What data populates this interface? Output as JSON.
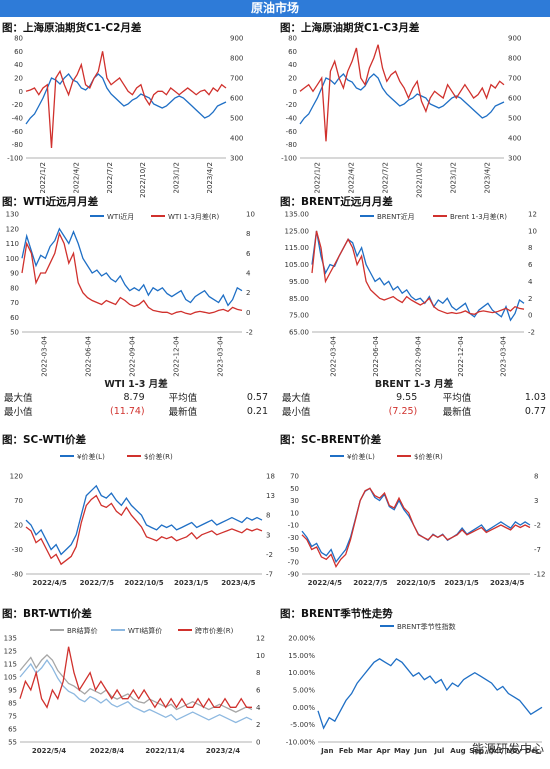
{
  "banner": "原油市场",
  "titles": {
    "p1": "图：上海原油期货C1-C2月差",
    "p2": "图：上海原油期货C1-C3月差",
    "p3": "图：WTI近远月月差",
    "p4": "图：BRENT近远月月差",
    "p5": "图：SC-WTI价差",
    "p6": "图：SC-BRENT价差",
    "p7": "图：BRT-WTI价差",
    "p8": "图：BRENT季节性走势"
  },
  "stats": {
    "wti": {
      "header": "WTI 1-3 月差",
      "max_label": "最大值",
      "max": "8.79",
      "avg_label": "平均值",
      "avg": "0.57",
      "min_label": "最小值",
      "min": "(11.74)",
      "last_label": "最新值",
      "last": "0.21"
    },
    "brent": {
      "header": "BRENT 1-3 月差",
      "max_label": "最大值",
      "max": "9.55",
      "avg_label": "平均值",
      "avg": "1.03",
      "min_label": "最小值",
      "min": "(7.25)",
      "last_label": "最新值",
      "last": "0.77"
    }
  },
  "colors": {
    "blue": "#1f6fc5",
    "red": "#d0312d",
    "gray": "#a6a6a6",
    "lightblue": "#8db8e0"
  },
  "watermark": "能源研发中心",
  "chart_data": [
    {
      "id": "p1",
      "type": "line",
      "ylim": [
        -100,
        80
      ],
      "y2lim": [
        300,
        900
      ],
      "yticks": [
        "80",
        "60",
        "40",
        "20",
        "0",
        "-20",
        "-40",
        "-60",
        "-80",
        "-100"
      ],
      "y2ticks": [
        "900",
        "800",
        "700",
        "600",
        "500",
        "400",
        "300"
      ],
      "xticks": [
        "2022/1/2",
        "2022/4/2",
        "2022/7/2",
        "2022/10/2",
        "2023/1/2",
        "2023/4/2"
      ],
      "series": [
        {
          "axis": "right",
          "color": "blue",
          "values": [
            470,
            500,
            520,
            560,
            600,
            650,
            700,
            690,
            670,
            700,
            720,
            690,
            680,
            650,
            640,
            660,
            700,
            720,
            700,
            650,
            620,
            600,
            580,
            560,
            570,
            590,
            600,
            620,
            610,
            600,
            570,
            560,
            550,
            560,
            580,
            600,
            610,
            600,
            580,
            560,
            540,
            520,
            500,
            510,
            530,
            560,
            570,
            580
          ]
        },
        {
          "axis": "left",
          "color": "red",
          "values": [
            0,
            2,
            5,
            -5,
            5,
            10,
            -85,
            20,
            30,
            10,
            -5,
            15,
            25,
            40,
            10,
            5,
            20,
            30,
            60,
            20,
            10,
            15,
            20,
            10,
            0,
            -5,
            5,
            10,
            -10,
            -20,
            -5,
            0,
            0,
            -5,
            5,
            0,
            -5,
            0,
            5,
            0,
            -5,
            0,
            2,
            -5,
            5,
            0,
            10,
            5
          ]
        }
      ]
    },
    {
      "id": "p2",
      "type": "line",
      "ylim": [
        -100,
        80
      ],
      "y2lim": [
        300,
        900
      ],
      "yticks": [
        "80",
        "60",
        "40",
        "20",
        "0",
        "-20",
        "-40",
        "-60",
        "-80",
        "-100"
      ],
      "y2ticks": [
        "900",
        "800",
        "700",
        "600",
        "500",
        "400",
        "300"
      ],
      "xticks": [
        "2022/1/2",
        "2022/4/2",
        "2022/7/2",
        "2022/10/2",
        "2023/1/2",
        "2023/4/2"
      ],
      "series": [
        {
          "axis": "right",
          "color": "blue",
          "values": [
            470,
            500,
            520,
            560,
            600,
            650,
            700,
            690,
            670,
            700,
            720,
            690,
            680,
            650,
            640,
            660,
            700,
            720,
            700,
            650,
            620,
            600,
            580,
            560,
            570,
            590,
            600,
            620,
            610,
            600,
            570,
            560,
            550,
            560,
            580,
            600,
            610,
            600,
            580,
            560,
            540,
            520,
            500,
            510,
            530,
            560,
            570,
            580
          ]
        },
        {
          "axis": "left",
          "color": "red",
          "values": [
            0,
            5,
            10,
            0,
            10,
            20,
            -75,
            30,
            45,
            20,
            5,
            30,
            45,
            65,
            20,
            10,
            35,
            50,
            70,
            35,
            15,
            25,
            30,
            15,
            5,
            -10,
            5,
            15,
            -15,
            -30,
            -10,
            0,
            -5,
            -10,
            10,
            0,
            -10,
            0,
            10,
            0,
            -10,
            -5,
            5,
            -10,
            10,
            5,
            15,
            10
          ]
        }
      ]
    },
    {
      "id": "p3",
      "type": "line",
      "ylim": [
        50,
        130
      ],
      "y2lim": [
        -2,
        10
      ],
      "yticks": [
        "130",
        "120",
        "110",
        "100",
        "90",
        "80",
        "70",
        "60",
        "50"
      ],
      "y2ticks": [
        "10",
        "8",
        "6",
        "4",
        "2",
        "0",
        "-2"
      ],
      "xticks": [
        "2022-03-04",
        "2022-06-04",
        "2022-09-04",
        "2022-12-04",
        "2023-03-04"
      ],
      "legend": [
        "WTI近月",
        "WTI 1-3月差(R)"
      ],
      "series": [
        {
          "axis": "left",
          "color": "blue",
          "values": [
            100,
            115,
            105,
            95,
            102,
            100,
            108,
            112,
            120,
            115,
            110,
            118,
            110,
            100,
            95,
            90,
            92,
            88,
            90,
            86,
            84,
            88,
            82,
            78,
            80,
            78,
            82,
            75,
            80,
            78,
            80,
            76,
            74,
            76,
            78,
            72,
            70,
            74,
            76,
            78,
            74,
            72,
            70,
            75,
            68,
            72,
            80,
            78
          ]
        },
        {
          "axis": "right",
          "color": "red",
          "values": [
            4,
            7,
            6,
            3,
            4,
            4,
            5,
            6,
            8,
            7,
            5,
            6,
            3,
            2,
            1.5,
            1.2,
            1,
            0.8,
            1.2,
            1,
            0.8,
            1.5,
            1.2,
            0.8,
            0.6,
            0.8,
            1.2,
            0.5,
            0.2,
            0.1,
            0,
            0,
            -0.2,
            0,
            0.1,
            -0.1,
            -0.2,
            0,
            0.1,
            0,
            -0.1,
            0,
            0.2,
            0.3,
            0.1,
            0.5,
            0.3,
            0.2
          ]
        }
      ]
    },
    {
      "id": "p4",
      "type": "line",
      "ylim": [
        65,
        135
      ],
      "y2lim": [
        -2,
        12
      ],
      "yticks": [
        "135.00",
        "125.00",
        "115.00",
        "105.00",
        "95.00",
        "85.00",
        "75.00",
        "65.00"
      ],
      "y2ticks": [
        "12",
        "10",
        "8",
        "6",
        "4",
        "2",
        "0",
        "-2"
      ],
      "xticks": [
        "2022-03-04",
        "2022-06-04",
        "2022-09-04",
        "2022-12-04",
        "2023-03-04"
      ],
      "legend": [
        "BRENT近月",
        "Brent 1-3月差(R)"
      ],
      "series": [
        {
          "axis": "left",
          "color": "blue",
          "values": [
            105,
            125,
            110,
            100,
            105,
            104,
            110,
            115,
            120,
            118,
            110,
            115,
            105,
            100,
            95,
            97,
            93,
            95,
            90,
            92,
            88,
            90,
            86,
            84,
            85,
            82,
            86,
            80,
            84,
            82,
            85,
            80,
            78,
            80,
            82,
            76,
            74,
            78,
            80,
            82,
            78,
            76,
            74,
            80,
            72,
            76,
            84,
            82
          ]
        },
        {
          "axis": "right",
          "color": "red",
          "values": [
            5,
            10,
            8,
            4,
            5,
            6,
            7,
            8,
            9,
            8,
            6,
            7,
            4,
            3,
            2.5,
            2,
            1.8,
            2,
            2.2,
            1.8,
            1.5,
            2.2,
            1.8,
            1.5,
            1.2,
            1.5,
            2,
            1,
            0.6,
            0.4,
            0.2,
            0.3,
            0.2,
            0.3,
            0.5,
            0.2,
            0.1,
            0.4,
            0.5,
            0.4,
            0.3,
            0.4,
            0.6,
            0.8,
            0.5,
            1,
            0.8,
            0.7
          ]
        }
      ]
    },
    {
      "id": "p5",
      "type": "line",
      "ylim": [
        -80,
        120
      ],
      "y2lim": [
        -7,
        18
      ],
      "yticks": [
        "120",
        "70",
        "20",
        "-30",
        "-80"
      ],
      "y2ticks": [
        "18",
        "13",
        "8",
        "3",
        "-2",
        "-7"
      ],
      "xticks": [
        "2022/4/5",
        "2022/7/5",
        "2022/10/5",
        "2023/1/5",
        "2023/4/5"
      ],
      "legend": [
        "¥价差(L)",
        "$价差(R)"
      ],
      "series": [
        {
          "axis": "left",
          "color": "blue",
          "values": [
            30,
            20,
            0,
            10,
            -10,
            -30,
            -20,
            -40,
            -30,
            -20,
            0,
            40,
            80,
            90,
            100,
            80,
            75,
            85,
            70,
            60,
            75,
            60,
            50,
            40,
            20,
            15,
            10,
            20,
            15,
            20,
            10,
            15,
            20,
            25,
            15,
            20,
            25,
            30,
            20,
            25,
            30,
            35,
            30,
            25,
            35,
            30,
            35,
            30
          ]
        },
        {
          "axis": "right",
          "color": "red",
          "values": [
            5,
            4,
            1,
            2,
            -0.5,
            -3,
            -2,
            -4.5,
            -3.5,
            -2.5,
            0,
            6,
            10.5,
            12,
            13,
            10.5,
            10,
            11,
            9,
            8,
            10,
            8,
            6.5,
            5,
            2.5,
            2,
            1.5,
            2.5,
            2,
            2.5,
            1.5,
            2,
            2.5,
            3.5,
            2,
            3,
            3.5,
            4,
            3,
            3.5,
            4,
            4.5,
            4,
            3.5,
            4.5,
            4,
            4.5,
            4
          ]
        }
      ]
    },
    {
      "id": "p6",
      "type": "line",
      "ylim": [
        -90,
        70
      ],
      "y2lim": [
        -12,
        8
      ],
      "yticks": [
        "70",
        "50",
        "30",
        "10",
        "-10",
        "-30",
        "-50",
        "-70",
        "-90"
      ],
      "y2ticks": [
        "8",
        "3",
        "-2",
        "-7",
        "-12"
      ],
      "xticks": [
        "2022/4/5",
        "2022/7/5",
        "2022/10/5",
        "2023/1/5",
        "2023/4/5"
      ],
      "legend": [
        "¥价差(L)",
        "$价差(R)"
      ],
      "series": [
        {
          "axis": "left",
          "color": "blue",
          "values": [
            -20,
            -30,
            -45,
            -40,
            -55,
            -60,
            -50,
            -70,
            -60,
            -50,
            -30,
            0,
            30,
            45,
            50,
            35,
            30,
            40,
            20,
            15,
            30,
            15,
            5,
            -10,
            -25,
            -30,
            -35,
            -25,
            -30,
            -25,
            -35,
            -30,
            -25,
            -15,
            -25,
            -20,
            -15,
            -10,
            -20,
            -15,
            -10,
            -5,
            -10,
            -15,
            -5,
            -10,
            -5,
            -10
          ]
        },
        {
          "axis": "right",
          "color": "red",
          "values": [
            -4,
            -5,
            -7,
            -6.5,
            -8.5,
            -9,
            -8,
            -10.5,
            -9,
            -8,
            -5,
            -1,
            3,
            5,
            5.5,
            4,
            3.5,
            4.5,
            2,
            1.5,
            3.5,
            1.5,
            0.5,
            -2,
            -4,
            -4.5,
            -5,
            -4,
            -4.5,
            -4,
            -5,
            -4.5,
            -4,
            -3,
            -4,
            -3.5,
            -3,
            -2.5,
            -3.5,
            -3,
            -2.5,
            -2,
            -2.5,
            -3,
            -2,
            -2.5,
            -2,
            -2.5
          ]
        }
      ]
    },
    {
      "id": "p7",
      "type": "line",
      "ylim": [
        55,
        135
      ],
      "y2lim": [
        0,
        12
      ],
      "yticks": [
        "135",
        "125",
        "115",
        "105",
        "95",
        "85",
        "75",
        "65",
        "55"
      ],
      "y2ticks": [
        "12",
        "10",
        "8",
        "6",
        "4",
        "2",
        "0"
      ],
      "xticks": [
        "2022/5/4",
        "2022/8/4",
        "2022/11/4",
        "2023/2/4"
      ],
      "legend": [
        "BR结算价",
        "WTI结算价",
        "跨市价差(R)"
      ],
      "series": [
        {
          "axis": "left",
          "color": "gray",
          "values": [
            110,
            115,
            120,
            112,
            118,
            122,
            118,
            110,
            105,
            100,
            98,
            95,
            92,
            96,
            94,
            92,
            95,
            90,
            88,
            90,
            92,
            88,
            86,
            85,
            88,
            86,
            84,
            82,
            84,
            80,
            82,
            84,
            86,
            84,
            82,
            80,
            82,
            84,
            82,
            80,
            78,
            80,
            82,
            80
          ]
        },
        {
          "axis": "left",
          "color": "lightblue",
          "values": [
            105,
            110,
            115,
            108,
            112,
            118,
            112,
            104,
            98,
            94,
            92,
            88,
            86,
            90,
            88,
            85,
            88,
            84,
            82,
            84,
            86,
            82,
            80,
            78,
            80,
            78,
            76,
            74,
            76,
            72,
            74,
            76,
            78,
            76,
            74,
            72,
            74,
            76,
            74,
            72,
            70,
            72,
            74,
            72
          ]
        },
        {
          "axis": "right",
          "color": "red",
          "values": [
            5,
            7,
            6,
            8,
            5,
            4,
            6,
            5,
            7,
            11,
            8,
            6,
            7,
            8,
            6,
            7,
            6,
            5,
            6,
            5,
            5,
            6,
            5,
            6,
            5,
            4,
            5,
            4,
            5,
            4,
            5,
            4,
            4,
            5,
            4,
            5,
            4,
            4,
            5,
            4,
            4,
            5,
            4,
            4
          ]
        }
      ]
    },
    {
      "id": "p8",
      "type": "line",
      "ylim": [
        -10,
        20
      ],
      "yticks": [
        "20.00%",
        "15.00%",
        "10.00%",
        "5.00%",
        "0.00%",
        "-5.00%",
        "-10.00%"
      ],
      "xticks": [
        "Jan",
        "Feb",
        "Mar",
        "Apr",
        "May",
        "Jun",
        "Jul",
        "Aug",
        "Sep",
        "Oct",
        "Nov",
        "Dec"
      ],
      "legend": [
        "BRENT季节性指数"
      ],
      "series": [
        {
          "axis": "left",
          "color": "blue",
          "values": [
            -1,
            -6,
            -3,
            -4,
            -1,
            2,
            4,
            7,
            9,
            11,
            13,
            14,
            13,
            12,
            14,
            13,
            11,
            9,
            10,
            8,
            9,
            7,
            8,
            5,
            7,
            6,
            8,
            9,
            10,
            9,
            8,
            7,
            5,
            6,
            4,
            3,
            2,
            0,
            -2,
            -1,
            0
          ]
        }
      ]
    }
  ]
}
